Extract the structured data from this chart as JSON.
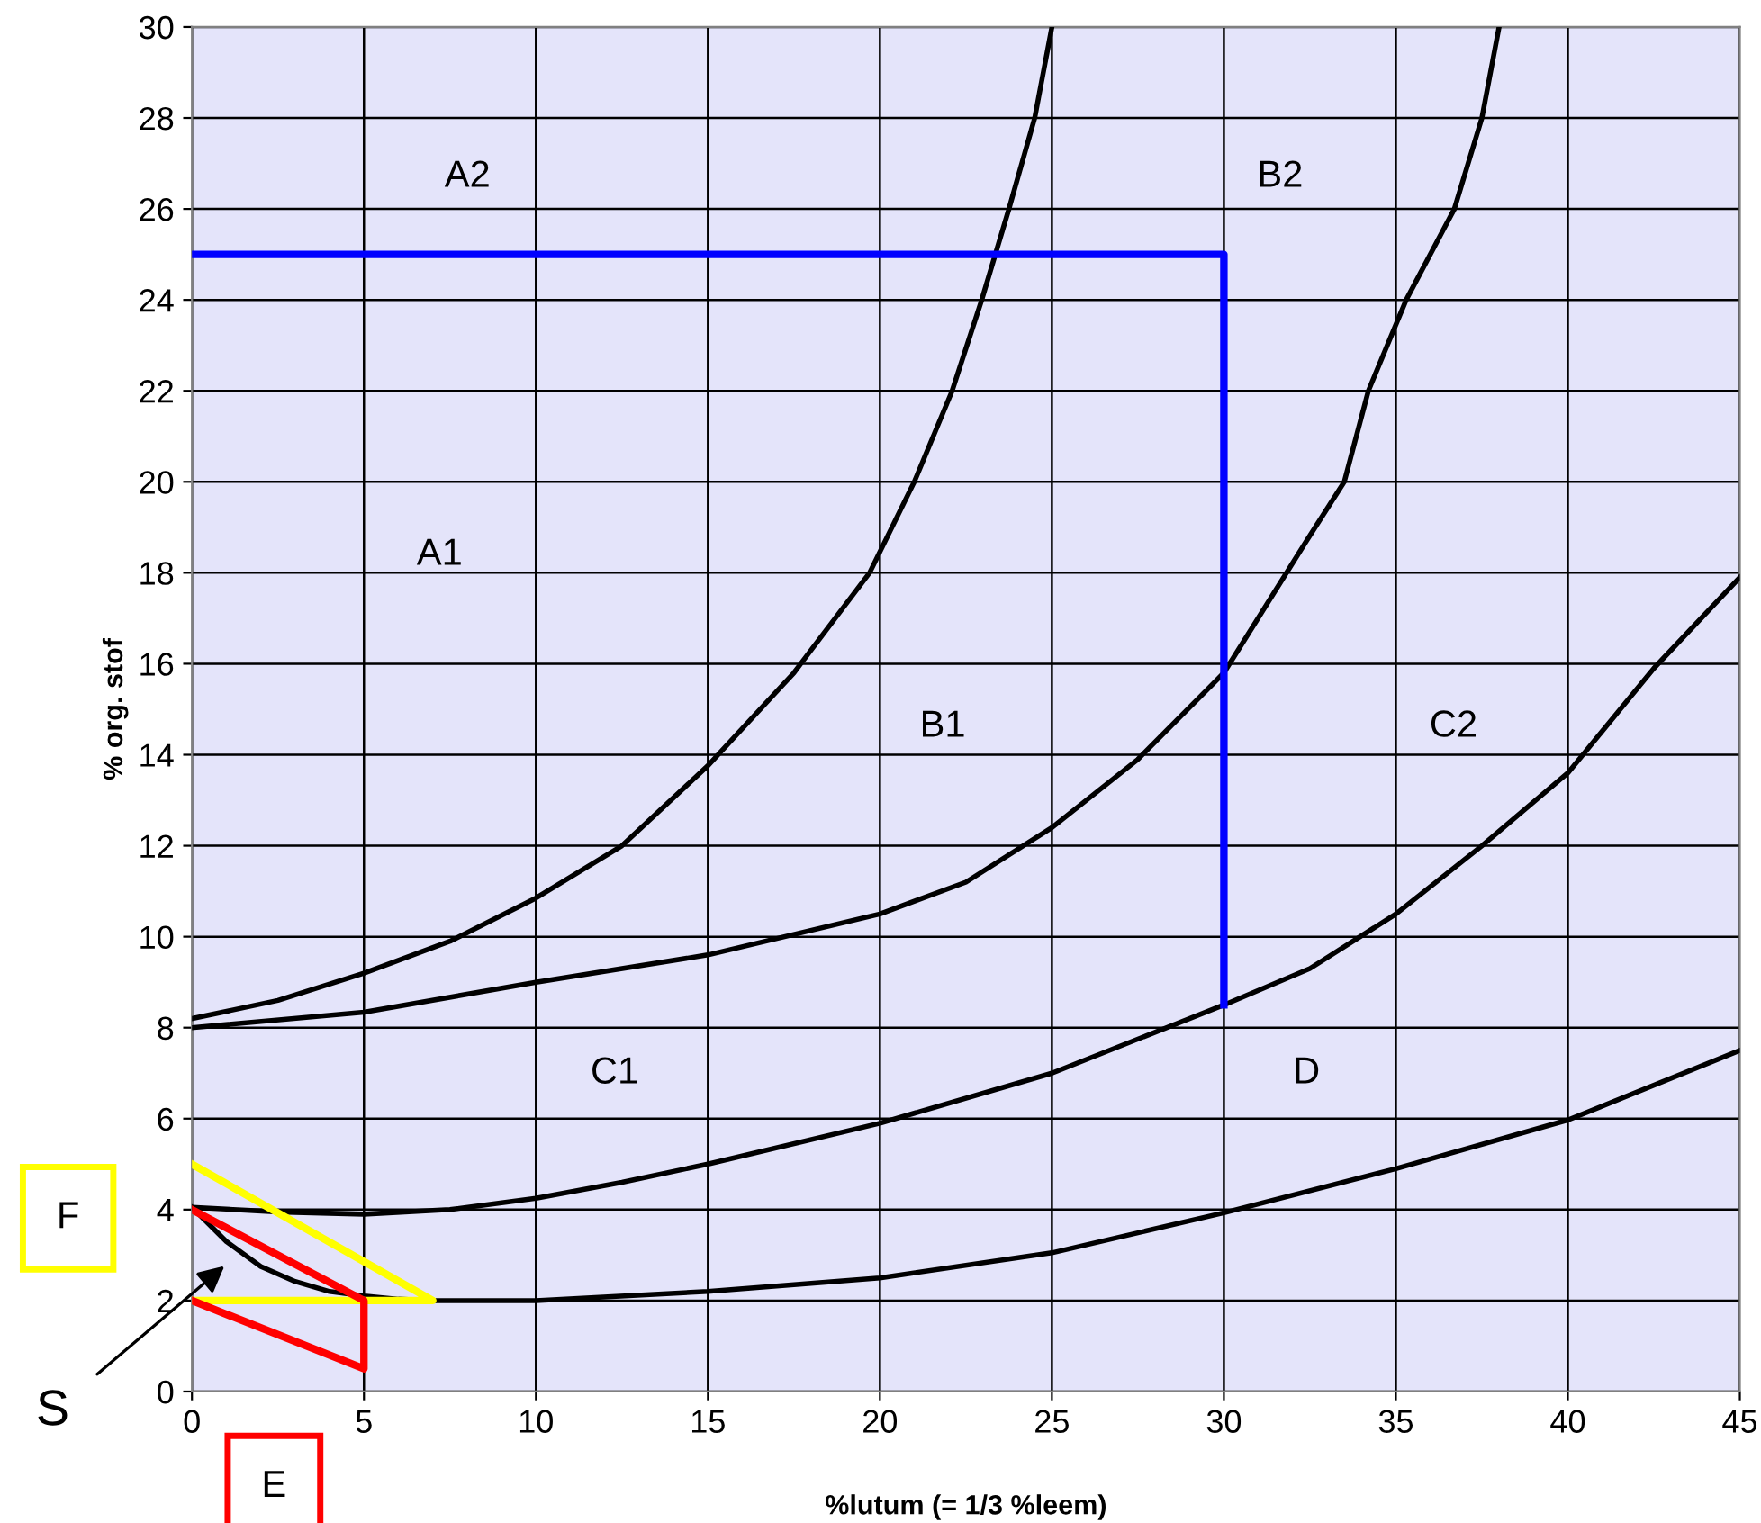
{
  "chart_data": {
    "type": "line",
    "xlabel": "%lutum (= 1/3 %leem)",
    "ylabel": "% org. stof",
    "xlim": [
      0,
      45
    ],
    "ylim": [
      0,
      30
    ],
    "xticks": [
      0,
      5,
      10,
      15,
      20,
      25,
      30,
      35,
      40,
      45
    ],
    "yticks": [
      0,
      2,
      4,
      6,
      8,
      10,
      12,
      14,
      16,
      18,
      20,
      22,
      24,
      26,
      28,
      30
    ],
    "grid": true,
    "marker": "none",
    "line_style": "solid",
    "series": [
      {
        "color": "#000000",
        "x": [
          0,
          2.5,
          5,
          7.5,
          10,
          12.5,
          15,
          17.5,
          17.7,
          19.7,
          21,
          22.1,
          22.96,
          23.75,
          24.5,
          25
        ],
        "values": [
          8.2,
          8.6,
          9.2,
          9.9,
          10.85,
          12.0,
          13.76,
          15.8,
          16,
          18,
          20,
          22,
          24,
          26,
          28,
          30
        ]
      },
      {
        "color": "#000000",
        "x": [
          0,
          5,
          10,
          15,
          20,
          22.5,
          25,
          27.5,
          30,
          32.4,
          33.5,
          34.2,
          35.3,
          36.7,
          37.5,
          38
        ],
        "values": [
          8.0,
          8.34,
          9.0,
          9.6,
          10.5,
          11.2,
          12.4,
          13.9,
          15.8,
          18.7,
          20,
          22,
          24,
          26,
          28,
          30
        ]
      },
      {
        "color": "#000000",
        "x": [
          0,
          2.5,
          5,
          7.5,
          10,
          12.5,
          15,
          20,
          25,
          30,
          32.5,
          35,
          37.5,
          40,
          42.5,
          45
        ],
        "values": [
          4.05,
          3.95,
          3.9,
          4.0,
          4.25,
          4.6,
          5.0,
          5.9,
          7.0,
          8.5,
          9.3,
          10.5,
          12.0,
          13.6,
          15.9,
          17.9
        ]
      },
      {
        "color": "#000000",
        "x": [
          0,
          1,
          2,
          3,
          4,
          5,
          6,
          7,
          10,
          15,
          20,
          25,
          30,
          35,
          40,
          45
        ],
        "values": [
          4.05,
          3.3,
          2.75,
          2.42,
          2.2,
          2.1,
          2.03,
          2.0,
          2.0,
          2.2,
          2.5,
          3.05,
          3.93,
          4.9,
          5.97,
          7.5
        ]
      },
      {
        "color": "#0000ff",
        "x": [
          0,
          30,
          30
        ],
        "values": [
          25,
          25,
          8.5
        ]
      },
      {
        "name": "F",
        "color": "#ffff00",
        "x": [
          0,
          7,
          0
        ],
        "values": [
          5,
          2,
          2
        ]
      },
      {
        "name": "E",
        "color": "#ff0000",
        "x": [
          0,
          5,
          5,
          0
        ],
        "values": [
          4,
          2,
          0.5,
          2
        ]
      }
    ],
    "annotations": [
      "A2",
      "B2",
      "A1",
      "B1",
      "C2",
      "C1",
      "D",
      "S"
    ]
  }
}
